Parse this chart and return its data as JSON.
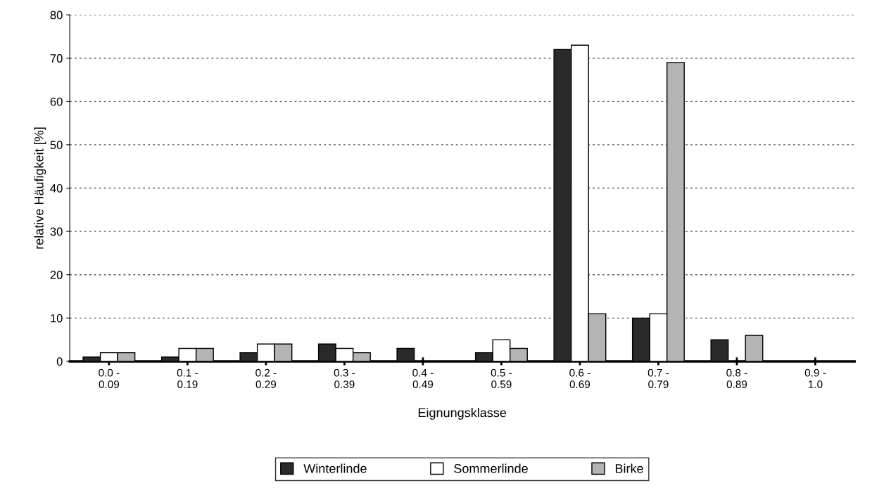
{
  "chart_data": {
    "type": "bar",
    "xlabel": "Eignungsklasse",
    "ylabel": "relative Häufigkeit [%]",
    "categories": [
      "0.0 -\n0.09",
      "0.1 -\n0.19",
      "0.2 -\n0.29",
      "0.3 -\n0.39",
      "0.4 -\n0.49",
      "0.5 -\n0.59",
      "0.6 -\n0.69",
      "0.7 -\n0.79",
      "0.8 -\n0.89",
      "0.9 -\n1.0"
    ],
    "series": [
      {
        "name": "Winterlinde",
        "color": "#2a2a2a",
        "values": [
          1,
          1,
          2,
          4,
          3,
          2,
          72,
          10,
          5,
          0
        ]
      },
      {
        "name": "Sommerlinde",
        "color": "#ffffff",
        "values": [
          2,
          3,
          4,
          3,
          0,
          5,
          73,
          11,
          0,
          0
        ]
      },
      {
        "name": "Birke",
        "color": "#b4b4b4",
        "values": [
          2,
          3,
          4,
          2,
          0,
          3,
          11,
          69,
          6,
          0
        ]
      }
    ],
    "ylim": [
      0,
      80
    ],
    "yticks": [
      0,
      10,
      20,
      30,
      40,
      50,
      60,
      70,
      80
    ],
    "grid": "y",
    "legend": "bottom"
  }
}
